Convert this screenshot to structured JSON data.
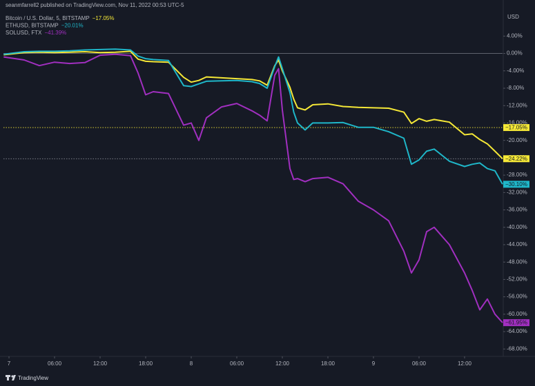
{
  "header": "seanmfarrell2 published on TradingView.com, Nov 11, 2022 00:53 UTC-5",
  "footer": "TradingView",
  "chart_data": {
    "type": "line",
    "axis_unit": "USD",
    "x": [
      -0.7,
      2,
      4,
      6,
      8,
      10,
      12,
      14,
      16,
      17,
      18,
      19,
      21,
      23,
      24,
      25,
      26,
      28,
      30,
      32,
      33,
      34,
      35,
      35.5,
      36,
      37,
      37.5,
      38,
      39,
      40,
      42,
      44,
      46,
      48,
      50,
      52,
      53,
      54,
      55,
      56,
      58,
      60,
      61,
      62,
      63,
      64,
      65
    ],
    "xlim": [
      -0.73,
      65
    ],
    "xticks": [
      {
        "value": 0,
        "label": "7"
      },
      {
        "value": 6,
        "label": "06:00"
      },
      {
        "value": 12,
        "label": "12:00"
      },
      {
        "value": 18,
        "label": "18:00"
      },
      {
        "value": 24,
        "label": "8"
      },
      {
        "value": 30,
        "label": "06:00"
      },
      {
        "value": 36,
        "label": "12:00"
      },
      {
        "value": 42,
        "label": "18:00"
      },
      {
        "value": 48,
        "label": "9"
      },
      {
        "value": 54,
        "label": "06:00"
      },
      {
        "value": 60,
        "label": "12:00"
      }
    ],
    "ylim": [
      -69.7,
      10.4
    ],
    "yticks": [
      {
        "value": 4,
        "label": "4.00%"
      },
      {
        "value": 0,
        "label": "0.00%"
      },
      {
        "value": -4,
        "label": "-4.00%"
      },
      {
        "value": -8,
        "label": "-8.00%"
      },
      {
        "value": -12,
        "label": "-12.00%"
      },
      {
        "value": -16,
        "label": "-16.00%"
      },
      {
        "value": -20,
        "label": "-20.00%"
      },
      {
        "value": -24,
        "label": "-24.00%"
      },
      {
        "value": -28,
        "label": "-28.00%"
      },
      {
        "value": -32,
        "label": "-32.00%"
      },
      {
        "value": -36,
        "label": "-36.00%"
      },
      {
        "value": -40,
        "label": "-40.00%"
      },
      {
        "value": -44,
        "label": "-44.00%"
      },
      {
        "value": -48,
        "label": "-48.00%"
      },
      {
        "value": -52,
        "label": "-52.00%"
      },
      {
        "value": -56,
        "label": "-56.00%"
      },
      {
        "value": -60,
        "label": "-60.00%"
      },
      {
        "value": -64,
        "label": "-64.00%"
      },
      {
        "value": -68,
        "label": "-68.00%"
      }
    ],
    "series": [
      {
        "name": "Bitcoin / U.S. Dollar, 5, BITSTAMP",
        "legend_value": "−17.05%",
        "color": "#f5e837",
        "values": [
          -0.3,
          0.2,
          0.3,
          0.2,
          0.3,
          0.4,
          0.2,
          0.3,
          0.5,
          -1.3,
          -1.8,
          -1.9,
          -2.0,
          -5.5,
          -6.6,
          -6.2,
          -5.4,
          -5.6,
          -5.8,
          -6.0,
          -6.3,
          -7.3,
          -2.8,
          -1.5,
          -4.0,
          -7.8,
          -10.5,
          -12.5,
          -13.0,
          -11.8,
          -11.6,
          -12.2,
          -12.4,
          -12.5,
          -12.6,
          -13.5,
          -16.1,
          -15.0,
          -15.6,
          -15.2,
          -15.8,
          -18.7,
          -18.5,
          -19.8,
          -20.8,
          -22.5,
          -24.22
        ]
      },
      {
        "name": "ETHUSD, BITSTAMP",
        "legend_value": "−20.01%",
        "color": "#1fb7c9",
        "values": [
          -0.2,
          0.4,
          0.5,
          0.5,
          0.6,
          0.8,
          0.9,
          1.0,
          0.8,
          -0.6,
          -1.2,
          -1.4,
          -1.6,
          -7.4,
          -7.6,
          -7.0,
          -6.4,
          -6.3,
          -6.2,
          -6.5,
          -6.9,
          -8.0,
          -3.0,
          -0.8,
          -3.5,
          -9.0,
          -13.5,
          -16.0,
          -17.6,
          -16.0,
          -16.0,
          -15.9,
          -17.0,
          -17.0,
          -18.0,
          -19.5,
          -25.5,
          -24.5,
          -22.5,
          -22.0,
          -24.8,
          -26.0,
          -25.5,
          -25.2,
          -26.5,
          -27.0,
          -30.1
        ]
      },
      {
        "name": "SOLUSD, FTX",
        "legend_value": "−41.39%",
        "color": "#a12fc0",
        "values": [
          -0.8,
          -1.5,
          -2.8,
          -2.0,
          -2.3,
          -2.1,
          -0.4,
          -0.2,
          -0.5,
          -4.5,
          -9.5,
          -8.8,
          -9.2,
          -16.5,
          -16.0,
          -20.0,
          -14.8,
          -12.3,
          -11.5,
          -13.2,
          -14.2,
          -15.5,
          -5.0,
          -3.5,
          -13.0,
          -26.5,
          -29.0,
          -28.8,
          -29.5,
          -28.8,
          -28.5,
          -30.0,
          -34.0,
          -36.0,
          -38.5,
          -45.5,
          -50.5,
          -47.5,
          -41.0,
          -40.0,
          -44.0,
          -50.5,
          -54.5,
          -59.0,
          -56.5,
          -60.0,
          -61.95
        ]
      }
    ],
    "markers": [
      {
        "value": -17.05,
        "label": "−17.05%",
        "color": "#f5e837",
        "line": "#f5e837"
      },
      {
        "value": -24.22,
        "label": "−24.22%",
        "color": "#f5e837",
        "line": "#8a8d96"
      },
      {
        "value": -30.1,
        "label": "−30.10%",
        "color": "#1fb7c9"
      },
      {
        "value": -61.95,
        "label": "−61.95%",
        "color": "#a12fc0"
      }
    ]
  }
}
